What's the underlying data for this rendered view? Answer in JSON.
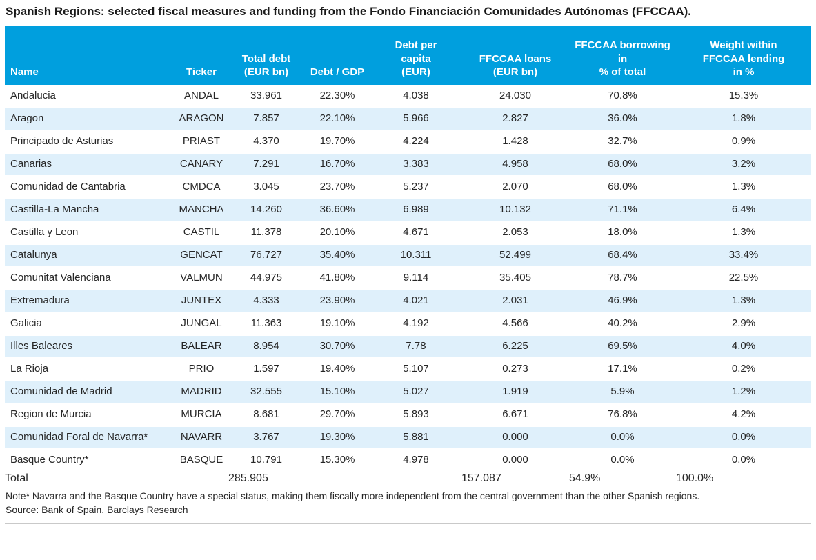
{
  "title": "Spanish Regions: selected fiscal measures and funding from the Fondo Financiación Comunidades Autónomas (FFCCAA).",
  "colors": {
    "header_bg": "#009FDE",
    "alt_row_bg": "#DFF0FB",
    "total_row_bg": "#E6E6E6",
    "text": "#262626"
  },
  "table": {
    "columns": [
      "Name",
      "Ticker",
      "Total debt\n(EUR bn)",
      "Debt / GDP",
      "Debt per\ncapita\n(EUR)",
      "FFCCAA loans\n(EUR bn)",
      "FFCCAA borrowing in\n% of total",
      "Weight within\nFFCCAA lending\nin %"
    ],
    "rows": [
      {
        "name": "Andalucia",
        "ticker": "ANDAL",
        "total_debt": "33.961",
        "debt_gdp": "22.30%",
        "debt_per_capita": "4.038",
        "ffccaa_loans": "24.030",
        "ffccaa_borrowing_pct": "70.8%",
        "weight_pct": "15.3%"
      },
      {
        "name": "Aragon",
        "ticker": "ARAGON",
        "total_debt": "7.857",
        "debt_gdp": "22.10%",
        "debt_per_capita": "5.966",
        "ffccaa_loans": "2.827",
        "ffccaa_borrowing_pct": "36.0%",
        "weight_pct": "1.8%"
      },
      {
        "name": "Principado de Asturias",
        "ticker": "PRIAST",
        "total_debt": "4.370",
        "debt_gdp": "19.70%",
        "debt_per_capita": "4.224",
        "ffccaa_loans": "1.428",
        "ffccaa_borrowing_pct": "32.7%",
        "weight_pct": "0.9%"
      },
      {
        "name": "Canarias",
        "ticker": "CANARY",
        "total_debt": "7.291",
        "debt_gdp": "16.70%",
        "debt_per_capita": "3.383",
        "ffccaa_loans": "4.958",
        "ffccaa_borrowing_pct": "68.0%",
        "weight_pct": "3.2%"
      },
      {
        "name": "Comunidad de Cantabria",
        "ticker": "CMDCA",
        "total_debt": "3.045",
        "debt_gdp": "23.70%",
        "debt_per_capita": "5.237",
        "ffccaa_loans": "2.070",
        "ffccaa_borrowing_pct": "68.0%",
        "weight_pct": "1.3%"
      },
      {
        "name": "Castilla-La Mancha",
        "ticker": "MANCHA",
        "total_debt": "14.260",
        "debt_gdp": "36.60%",
        "debt_per_capita": "6.989",
        "ffccaa_loans": "10.132",
        "ffccaa_borrowing_pct": "71.1%",
        "weight_pct": "6.4%"
      },
      {
        "name": "Castilla y Leon",
        "ticker": "CASTIL",
        "total_debt": "11.378",
        "debt_gdp": "20.10%",
        "debt_per_capita": "4.671",
        "ffccaa_loans": "2.053",
        "ffccaa_borrowing_pct": "18.0%",
        "weight_pct": "1.3%"
      },
      {
        "name": "Catalunya",
        "ticker": "GENCAT",
        "total_debt": "76.727",
        "debt_gdp": "35.40%",
        "debt_per_capita": "10.311",
        "ffccaa_loans": "52.499",
        "ffccaa_borrowing_pct": "68.4%",
        "weight_pct": "33.4%"
      },
      {
        "name": "Comunitat Valenciana",
        "ticker": "VALMUN",
        "total_debt": "44.975",
        "debt_gdp": "41.80%",
        "debt_per_capita": "9.114",
        "ffccaa_loans": "35.405",
        "ffccaa_borrowing_pct": "78.7%",
        "weight_pct": "22.5%"
      },
      {
        "name": "Extremadura",
        "ticker": "JUNTEX",
        "total_debt": "4.333",
        "debt_gdp": "23.90%",
        "debt_per_capita": "4.021",
        "ffccaa_loans": "2.031",
        "ffccaa_borrowing_pct": "46.9%",
        "weight_pct": "1.3%"
      },
      {
        "name": "Galicia",
        "ticker": "JUNGAL",
        "total_debt": "11.363",
        "debt_gdp": "19.10%",
        "debt_per_capita": "4.192",
        "ffccaa_loans": "4.566",
        "ffccaa_borrowing_pct": "40.2%",
        "weight_pct": "2.9%"
      },
      {
        "name": "Illes Baleares",
        "ticker": "BALEAR",
        "total_debt": "8.954",
        "debt_gdp": "30.70%",
        "debt_per_capita": "7.78",
        "ffccaa_loans": "6.225",
        "ffccaa_borrowing_pct": "69.5%",
        "weight_pct": "4.0%"
      },
      {
        "name": "La Rioja",
        "ticker": "PRIO",
        "total_debt": "1.597",
        "debt_gdp": "19.40%",
        "debt_per_capita": "5.107",
        "ffccaa_loans": "0.273",
        "ffccaa_borrowing_pct": "17.1%",
        "weight_pct": "0.2%"
      },
      {
        "name": "Comunidad de Madrid",
        "ticker": "MADRID",
        "total_debt": "32.555",
        "debt_gdp": "15.10%",
        "debt_per_capita": "5.027",
        "ffccaa_loans": "1.919",
        "ffccaa_borrowing_pct": "5.9%",
        "weight_pct": "1.2%"
      },
      {
        "name": "Region de Murcia",
        "ticker": "MURCIA",
        "total_debt": "8.681",
        "debt_gdp": "29.70%",
        "debt_per_capita": "5.893",
        "ffccaa_loans": "6.671",
        "ffccaa_borrowing_pct": "76.8%",
        "weight_pct": "4.2%"
      },
      {
        "name": "Comunidad Foral de Navarra*",
        "ticker": "NAVARR",
        "total_debt": "3.767",
        "debt_gdp": "19.30%",
        "debt_per_capita": "5.881",
        "ffccaa_loans": "0.000",
        "ffccaa_borrowing_pct": "0.0%",
        "weight_pct": "0.0%"
      },
      {
        "name": "Basque Country*",
        "ticker": "BASQUE",
        "total_debt": "10.791",
        "debt_gdp": "15.30%",
        "debt_per_capita": "4.978",
        "ffccaa_loans": "0.000",
        "ffccaa_borrowing_pct": "0.0%",
        "weight_pct": "0.0%"
      }
    ],
    "total": {
      "name": "Total",
      "ticker": "",
      "total_debt": "285.905",
      "debt_gdp": "",
      "debt_per_capita": "",
      "ffccaa_loans": "157.087",
      "ffccaa_borrowing_pct": "54.9%",
      "weight_pct": "100.0%"
    }
  },
  "note": "Note* Navarra and the Basque Country have a special status, making them fiscally more independent from the central government than the other Spanish regions.",
  "source": "Source: Bank of Spain, Barclays Research"
}
